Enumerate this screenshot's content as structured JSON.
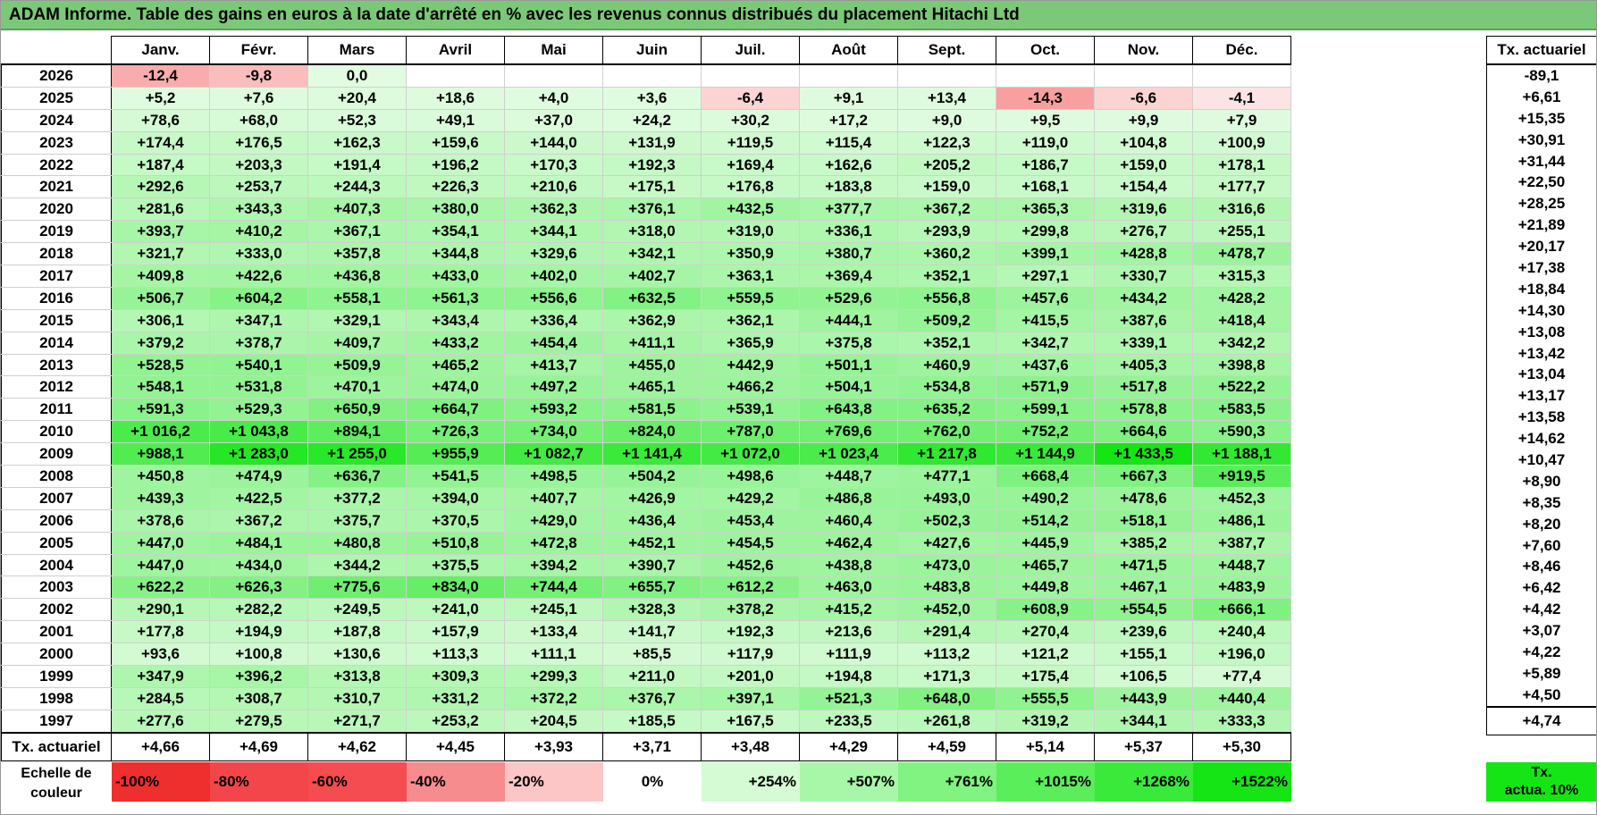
{
  "title": "ADAM Informe. Table des gains en euros à la date d'arrêté en % avec les revenus connus distribués du placement Hitachi Ltd",
  "chart_data": {
    "type": "heatmap",
    "columns": [
      "Janv.",
      "Févr.",
      "Mars",
      "Avril",
      "Mai",
      "Juin",
      "Juil.",
      "Août",
      "Sept.",
      "Oct.",
      "Nov.",
      "Déc."
    ],
    "side_header": "Tx. actuariel",
    "rows": [
      {
        "year": "2026",
        "values": [
          "-12,4",
          "-9,8",
          "0,0",
          "",
          "",
          "",
          "",
          "",
          "",
          "",
          "",
          ""
        ],
        "actuarial": "-89,1"
      },
      {
        "year": "2025",
        "values": [
          "+5,2",
          "+7,6",
          "+20,4",
          "+18,6",
          "+4,0",
          "+3,6",
          "-6,4",
          "+9,1",
          "+13,4",
          "-14,3",
          "-6,6",
          "-4,1"
        ],
        "actuarial": "+6,61"
      },
      {
        "year": "2024",
        "values": [
          "+78,6",
          "+68,0",
          "+52,3",
          "+49,1",
          "+37,0",
          "+24,2",
          "+30,2",
          "+17,2",
          "+9,0",
          "+9,5",
          "+9,9",
          "+7,9"
        ],
        "actuarial": "+15,35"
      },
      {
        "year": "2023",
        "values": [
          "+174,4",
          "+176,5",
          "+162,3",
          "+159,6",
          "+144,0",
          "+131,9",
          "+119,5",
          "+115,4",
          "+122,3",
          "+119,0",
          "+104,8",
          "+100,9"
        ],
        "actuarial": "+30,91"
      },
      {
        "year": "2022",
        "values": [
          "+187,4",
          "+203,3",
          "+191,4",
          "+196,2",
          "+170,3",
          "+192,3",
          "+169,4",
          "+162,6",
          "+205,2",
          "+186,7",
          "+159,0",
          "+178,1"
        ],
        "actuarial": "+31,44"
      },
      {
        "year": "2021",
        "values": [
          "+292,6",
          "+253,7",
          "+244,3",
          "+226,3",
          "+210,6",
          "+175,1",
          "+176,8",
          "+183,8",
          "+159,0",
          "+168,1",
          "+154,4",
          "+177,7"
        ],
        "actuarial": "+22,50"
      },
      {
        "year": "2020",
        "values": [
          "+281,6",
          "+343,3",
          "+407,3",
          "+380,0",
          "+362,3",
          "+376,1",
          "+432,5",
          "+377,7",
          "+367,2",
          "+365,3",
          "+319,6",
          "+316,6"
        ],
        "actuarial": "+28,25"
      },
      {
        "year": "2019",
        "values": [
          "+393,7",
          "+410,2",
          "+367,1",
          "+354,1",
          "+344,1",
          "+318,0",
          "+319,0",
          "+336,1",
          "+293,9",
          "+299,8",
          "+276,7",
          "+255,1"
        ],
        "actuarial": "+21,89"
      },
      {
        "year": "2018",
        "values": [
          "+321,7",
          "+333,0",
          "+357,8",
          "+344,8",
          "+329,6",
          "+342,1",
          "+350,9",
          "+380,7",
          "+360,2",
          "+399,1",
          "+428,8",
          "+478,7"
        ],
        "actuarial": "+20,17"
      },
      {
        "year": "2017",
        "values": [
          "+409,8",
          "+422,6",
          "+436,8",
          "+433,0",
          "+402,0",
          "+402,7",
          "+363,1",
          "+369,4",
          "+352,1",
          "+297,1",
          "+330,7",
          "+315,3"
        ],
        "actuarial": "+17,38"
      },
      {
        "year": "2016",
        "values": [
          "+506,7",
          "+604,2",
          "+558,1",
          "+561,3",
          "+556,6",
          "+632,5",
          "+559,5",
          "+529,6",
          "+556,8",
          "+457,6",
          "+434,2",
          "+428,2"
        ],
        "actuarial": "+18,84"
      },
      {
        "year": "2015",
        "values": [
          "+306,1",
          "+347,1",
          "+329,1",
          "+343,4",
          "+336,4",
          "+362,9",
          "+362,1",
          "+444,1",
          "+509,2",
          "+415,5",
          "+387,6",
          "+418,4"
        ],
        "actuarial": "+14,30"
      },
      {
        "year": "2014",
        "values": [
          "+379,2",
          "+378,7",
          "+409,7",
          "+433,2",
          "+454,4",
          "+411,1",
          "+365,9",
          "+375,8",
          "+352,1",
          "+342,7",
          "+339,1",
          "+342,2"
        ],
        "actuarial": "+13,08"
      },
      {
        "year": "2013",
        "values": [
          "+528,5",
          "+540,1",
          "+509,9",
          "+465,2",
          "+413,7",
          "+455,0",
          "+442,9",
          "+501,1",
          "+460,9",
          "+437,6",
          "+405,3",
          "+398,8"
        ],
        "actuarial": "+13,42"
      },
      {
        "year": "2012",
        "values": [
          "+548,1",
          "+531,8",
          "+470,1",
          "+474,0",
          "+497,2",
          "+465,1",
          "+466,2",
          "+504,1",
          "+534,8",
          "+571,9",
          "+517,8",
          "+522,2"
        ],
        "actuarial": "+13,04"
      },
      {
        "year": "2011",
        "values": [
          "+591,3",
          "+529,3",
          "+650,9",
          "+664,7",
          "+593,2",
          "+581,5",
          "+539,1",
          "+643,8",
          "+635,2",
          "+599,1",
          "+578,8",
          "+583,5"
        ],
        "actuarial": "+13,17"
      },
      {
        "year": "2010",
        "values": [
          "+1 016,2",
          "+1 043,8",
          "+894,1",
          "+726,3",
          "+734,0",
          "+824,0",
          "+787,0",
          "+769,6",
          "+762,0",
          "+752,2",
          "+664,6",
          "+590,3"
        ],
        "actuarial": "+13,58"
      },
      {
        "year": "2009",
        "values": [
          "+988,1",
          "+1 283,0",
          "+1 255,0",
          "+955,9",
          "+1 082,7",
          "+1 141,4",
          "+1 072,0",
          "+1 023,4",
          "+1 217,8",
          "+1 144,9",
          "+1 433,5",
          "+1 188,1"
        ],
        "actuarial": "+14,62"
      },
      {
        "year": "2008",
        "values": [
          "+450,8",
          "+474,9",
          "+636,7",
          "+541,5",
          "+498,5",
          "+504,2",
          "+498,6",
          "+448,7",
          "+477,1",
          "+668,4",
          "+667,3",
          "+919,5"
        ],
        "actuarial": "+10,47"
      },
      {
        "year": "2007",
        "values": [
          "+439,3",
          "+422,5",
          "+377,2",
          "+394,0",
          "+407,7",
          "+426,9",
          "+429,2",
          "+486,8",
          "+493,0",
          "+490,2",
          "+478,6",
          "+452,3"
        ],
        "actuarial": "+8,90"
      },
      {
        "year": "2006",
        "values": [
          "+378,6",
          "+367,2",
          "+375,7",
          "+370,5",
          "+429,0",
          "+436,4",
          "+453,4",
          "+460,4",
          "+502,3",
          "+514,2",
          "+518,1",
          "+486,1"
        ],
        "actuarial": "+8,35"
      },
      {
        "year": "2005",
        "values": [
          "+447,0",
          "+484,1",
          "+480,8",
          "+510,8",
          "+472,8",
          "+452,1",
          "+454,5",
          "+462,4",
          "+427,6",
          "+445,9",
          "+385,2",
          "+387,7"
        ],
        "actuarial": "+8,20"
      },
      {
        "year": "2004",
        "values": [
          "+447,0",
          "+434,0",
          "+344,2",
          "+375,5",
          "+394,2",
          "+390,7",
          "+452,6",
          "+438,8",
          "+473,0",
          "+465,7",
          "+471,5",
          "+448,7"
        ],
        "actuarial": "+7,60"
      },
      {
        "year": "2003",
        "values": [
          "+622,2",
          "+626,3",
          "+775,6",
          "+834,0",
          "+744,4",
          "+655,7",
          "+612,2",
          "+463,0",
          "+483,8",
          "+449,8",
          "+467,1",
          "+483,9"
        ],
        "actuarial": "+8,46"
      },
      {
        "year": "2002",
        "values": [
          "+290,1",
          "+282,2",
          "+249,5",
          "+241,0",
          "+245,1",
          "+328,3",
          "+378,2",
          "+415,2",
          "+452,0",
          "+608,9",
          "+554,5",
          "+666,1"
        ],
        "actuarial": "+6,42"
      },
      {
        "year": "2001",
        "values": [
          "+177,8",
          "+194,9",
          "+187,8",
          "+157,9",
          "+133,4",
          "+141,7",
          "+192,3",
          "+213,6",
          "+291,4",
          "+270,4",
          "+239,6",
          "+240,4"
        ],
        "actuarial": "+4,42"
      },
      {
        "year": "2000",
        "values": [
          "+93,6",
          "+100,8",
          "+130,6",
          "+113,3",
          "+111,1",
          "+85,5",
          "+117,9",
          "+111,9",
          "+113,2",
          "+121,2",
          "+155,1",
          "+196,0"
        ],
        "actuarial": "+3,07"
      },
      {
        "year": "1999",
        "values": [
          "+347,9",
          "+396,2",
          "+313,8",
          "+309,3",
          "+299,3",
          "+211,0",
          "+201,0",
          "+194,8",
          "+171,3",
          "+175,4",
          "+106,5",
          "+77,4"
        ],
        "actuarial": "+4,22"
      },
      {
        "year": "1998",
        "values": [
          "+284,5",
          "+308,7",
          "+310,7",
          "+331,2",
          "+372,2",
          "+376,7",
          "+397,1",
          "+521,3",
          "+648,0",
          "+555,5",
          "+443,9",
          "+440,4"
        ],
        "actuarial": "+5,89"
      },
      {
        "year": "1997",
        "values": [
          "+277,6",
          "+279,5",
          "+271,7",
          "+253,2",
          "+204,5",
          "+185,5",
          "+167,5",
          "+233,5",
          "+261,8",
          "+319,2",
          "+344,1",
          "+333,3"
        ],
        "actuarial": "+4,50"
      }
    ],
    "footer": {
      "label": "Tx. actuariel",
      "values": [
        "+4,66",
        "+4,69",
        "+4,62",
        "+4,45",
        "+3,93",
        "+3,71",
        "+3,48",
        "+4,29",
        "+4,59",
        "+5,14",
        "+5,37",
        "+5,30"
      ],
      "total": "+4,74"
    },
    "legend": {
      "label_line1": "Echelle de",
      "label_line2": "couleur",
      "items": [
        {
          "label": "-100%",
          "color": "#ef2e2e"
        },
        {
          "label": "-80%",
          "color": "#f3464a"
        },
        {
          "label": "-60%",
          "color": "#f44c50"
        },
        {
          "label": "-40%",
          "color": "#f78c8e"
        },
        {
          "label": "-20%",
          "color": "#fcc6c7"
        },
        {
          "label": "0%",
          "color": "#ffffff"
        },
        {
          "label": "+254%",
          "color": "#d4fbd4"
        },
        {
          "label": "+507%",
          "color": "#a8f7a8"
        },
        {
          "label": "+761%",
          "color": "#80f380"
        },
        {
          "label": "+1015%",
          "color": "#5aee5a"
        },
        {
          "label": "+1268%",
          "color": "#3aea3a"
        },
        {
          "label": "+1522%",
          "color": "#15e515"
        }
      ],
      "actuarial_line1": "Tx.",
      "actuarial_line2": "actua. 10%",
      "actuarial_color": "#15e515"
    }
  }
}
